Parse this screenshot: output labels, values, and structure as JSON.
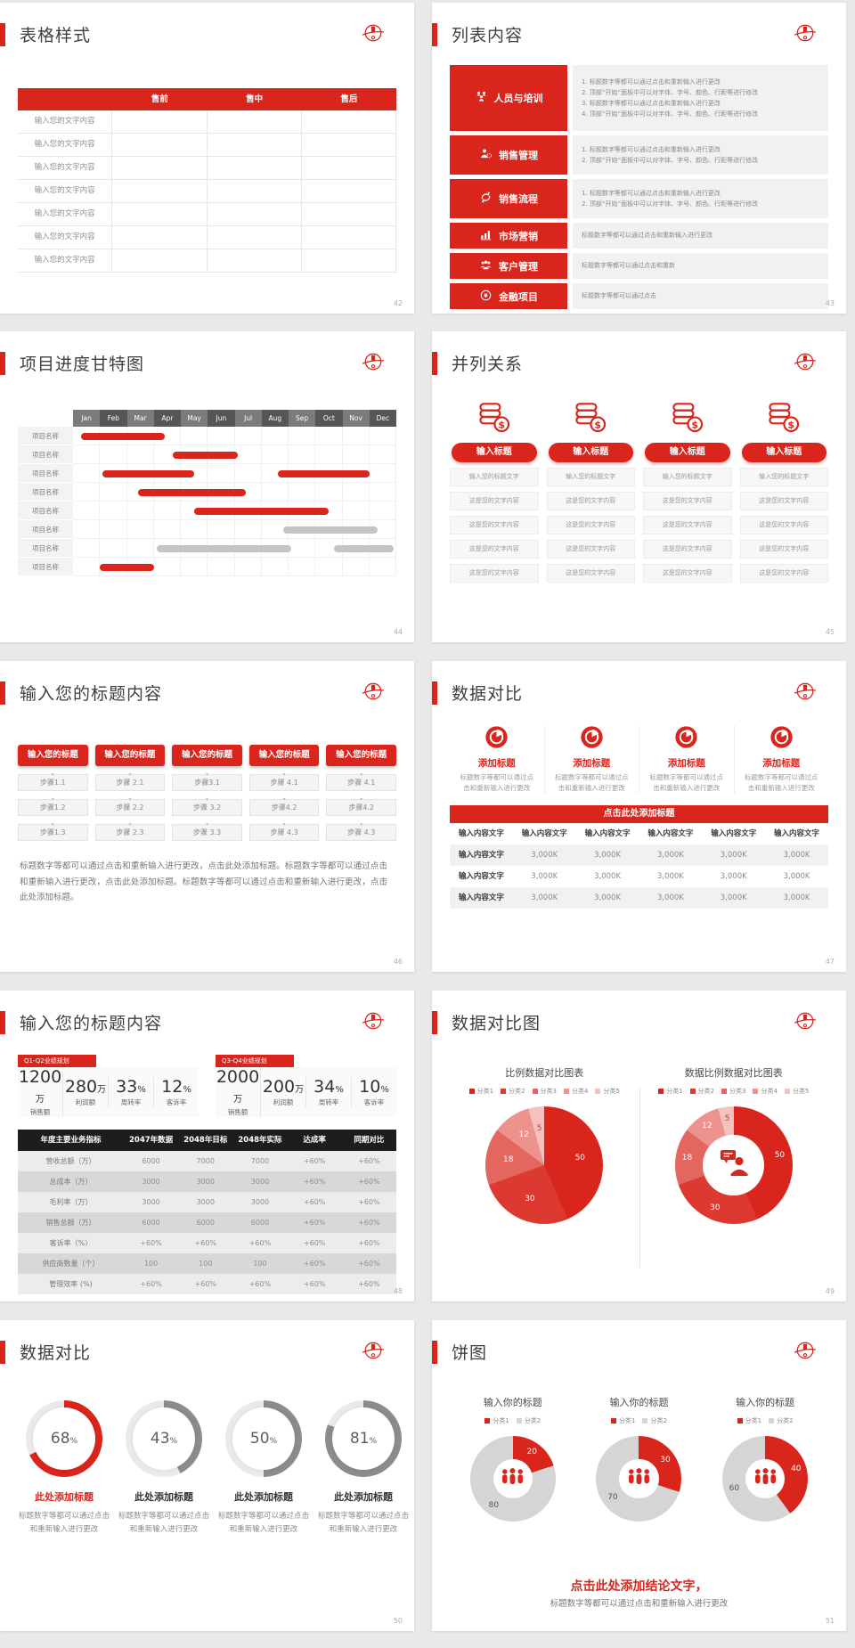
{
  "page": {
    "background": "#e9e9e9",
    "card_background": "#ffffff"
  },
  "colors": {
    "accent": "#da251c",
    "title_text": "#3f3f3f",
    "body_gray": "#8a8a8a",
    "gantt_month_a": "#7b7b7b",
    "gantt_month_b": "#565656",
    "gantt_bar_red": "#da251c",
    "gantt_bar_gray": "#c4c4c4",
    "table_header_black": "#1d1d1d",
    "row_light": "#ececec",
    "row_dark": "#d8d8d8",
    "ring_base": "#eaeaea",
    "ring_gray": "#8c8c8c",
    "pie_shades": [
      "#da251c",
      "#dc3a30",
      "#e4675f",
      "#ec938d",
      "#f4c1bd"
    ],
    "duo_gray": "#d5d5d5"
  },
  "slides": {
    "table_style": {
      "num": "42",
      "title": "表格样式",
      "table": {
        "columns": [
          "售前",
          "售中",
          "售后"
        ],
        "row_label": "输入您的文字内容",
        "row_count": 7
      }
    },
    "list_content": {
      "num": "43",
      "title": "列表内容",
      "blocks": [
        {
          "label": "人员与培训",
          "icon": "people-training-icon",
          "numbered": true,
          "items": [
            "标题数字等都可以通过点击和重新输入进行更改",
            "顶部“开始”面板中可以对字体、字号、颜色、行距等进行修改",
            "标题数字等都可以通过点击和重新输入进行更改",
            "顶部“开始”面板中可以对字体、字号、颜色、行距等进行修改"
          ]
        },
        {
          "label": "销售管理",
          "icon": "sales-management-icon",
          "numbered": true,
          "items": [
            "标题数字等都可以通过点击和重新输入进行更改",
            "顶部“开始”面板中可以对字体、字号、颜色、行距等进行修改"
          ]
        },
        {
          "label": "销售流程",
          "icon": "sales-process-icon",
          "numbered": true,
          "items": [
            "标题数字等都可以通过点击和重新输入进行更改",
            "顶部“开始”面板中可以对字体、字号、颜色、行距等进行修改"
          ]
        },
        {
          "label": "市场营销",
          "icon": "marketing-icon",
          "numbered": false,
          "items": [
            "标题数字等都可以通过点击和重新输入进行更改"
          ]
        },
        {
          "label": "客户管理",
          "icon": "customer-management-icon",
          "numbered": false,
          "items": [
            "标题数字等都可以通过点击和重新"
          ]
        },
        {
          "label": "金融项目",
          "icon": "finance-icon",
          "numbered": false,
          "items": [
            "标题数字等都可以通过点击"
          ]
        }
      ]
    },
    "gantt": {
      "num": "44",
      "title": "项目进度甘特图"
    },
    "parallel": {
      "num": "45",
      "title": "并列关系",
      "column_count": 4,
      "icon": "coins-dollar-icon",
      "button_label": "输入标题",
      "box_rows": [
        "输入您的标题文字",
        "这是您的文字内容",
        "这是您的文字内容",
        "这是您的文字内容",
        "这是您的文字内容"
      ]
    },
    "steps": {
      "num": "46",
      "title": "输入您的标题内容",
      "button_label": "输入您的标题",
      "step_cols": [
        [
          "步骤1.1",
          "步骤1.2",
          "步骤1.3"
        ],
        [
          "步骤 2.1",
          "步骤 2.2",
          "步骤 2.3"
        ],
        [
          "步骤3.1",
          "步骤 3.2",
          "步骤 3.3"
        ],
        [
          "步骤 4.1",
          "步骤4.2",
          "步骤 4.3"
        ],
        [
          "步骤 4.1",
          "步骤4.2",
          "步骤 4.3"
        ]
      ],
      "paragraph": "标题数字等都可以通过点击和重新输入进行更改，点击此处添加标题。标题数字等都可以通过点击和重新输入进行更改，点击此处添加标题。标题数字等都可以通过点击和重新输入进行更改，点击此处添加标题。"
    },
    "data_compare": {
      "num": "47",
      "title": "数据对比",
      "column_count": 4,
      "col_icon": "pie-badge-icon",
      "col_title": "添加标题",
      "col_text": "标题数字等都可以通过点击和重新输入进行更改",
      "banner": "点击此处添加标题",
      "table": {
        "header": [
          "输入内容文字",
          "输入内容文字",
          "输入内容文字",
          "输入内容文字",
          "输入内容文字",
          "输入内容文字"
        ],
        "rows": [
          [
            "输入内容文字",
            "3,000K",
            "3,000K",
            "3,000K",
            "3,000K",
            "3,000K"
          ],
          [
            "输入内容文字",
            "3,000K",
            "3,000K",
            "3,000K",
            "3,000K",
            "3,000K"
          ],
          [
            "输入内容文字",
            "3,000K",
            "3,000K",
            "3,000K",
            "3,000K",
            "3,000K"
          ]
        ]
      }
    },
    "metrics": {
      "num": "48",
      "title": "输入您的标题内容",
      "ribbons": [
        "Q1-Q2业绩规划",
        "Q3-Q4业绩规划"
      ],
      "groups": [
        [
          {
            "value": "1200",
            "unit": "万",
            "label": "销售额"
          },
          {
            "value": "280",
            "unit": "万",
            "label": "利润额"
          },
          {
            "value": "33",
            "unit": "%",
            "label": "周转率"
          },
          {
            "value": "12",
            "unit": "%",
            "label": "客诉率"
          }
        ],
        [
          {
            "value": "2000",
            "unit": "万",
            "label": "销售额"
          },
          {
            "value": "200",
            "unit": "万",
            "label": "利润额"
          },
          {
            "value": "34",
            "unit": "%",
            "label": "周转率"
          },
          {
            "value": "10",
            "unit": "%",
            "label": "客诉率"
          }
        ]
      ],
      "table": {
        "header": [
          "年度主要业务指标",
          "2047年数据",
          "2048年目标",
          "2048年实际",
          "达成率",
          "同期对比"
        ],
        "rows": [
          [
            "营收总额（万）",
            "6000",
            "7000",
            "7000",
            "+60%",
            "+60%"
          ],
          [
            "总成本（万）",
            "3000",
            "3000",
            "3000",
            "+60%",
            "+60%"
          ],
          [
            "毛利率（万）",
            "3000",
            "3000",
            "3000",
            "+60%",
            "+60%"
          ],
          [
            "销售总额（万）",
            "6000",
            "6000",
            "6000",
            "+60%",
            "+60%"
          ],
          [
            "客诉率（%）",
            "+60%",
            "+60%",
            "+60%",
            "+60%",
            "+60%"
          ],
          [
            "供应商数量（个）",
            "100",
            "100",
            "100",
            "+60%",
            "+60%"
          ],
          [
            "管理效率 (%)",
            "+60%",
            "+60%",
            "+60%",
            "+60%",
            "+60%"
          ]
        ]
      }
    },
    "compare_charts": {
      "num": "49",
      "title": "数据对比图"
    },
    "donut_percents": {
      "num": "50",
      "title": "数据对比",
      "item_title": "此处添加标题",
      "item_text": "标题数字等都可以通过点击和重新输入进行更改"
    },
    "pie_charts": {
      "num": "51",
      "title": "饼图",
      "conclusion": "点击此处添加结论文字，",
      "conclusion_sub": "标题数字等都可以通过点击和重新输入进行更改"
    }
  },
  "chart_data": [
    {
      "id": "gantt",
      "type": "bar",
      "subtype": "gantt",
      "title": "项目进度甘特图",
      "x_categories": [
        "Jan",
        "Feb",
        "Mar",
        "Apr",
        "May",
        "Jun",
        "Jul",
        "Aug",
        "Sep",
        "Oct",
        "Nov",
        "Dec"
      ],
      "row_label": "项目名称",
      "row_count": 8,
      "bars": [
        [
          {
            "start": 0.3,
            "end": 3.4,
            "color": "red"
          }
        ],
        [
          {
            "start": 3.7,
            "end": 6.1,
            "color": "red"
          }
        ],
        [
          {
            "start": 1.1,
            "end": 4.5,
            "color": "red"
          },
          {
            "start": 7.6,
            "end": 11.0,
            "color": "red"
          }
        ],
        [
          {
            "start": 2.4,
            "end": 6.4,
            "color": "red"
          }
        ],
        [
          {
            "start": 4.5,
            "end": 9.5,
            "color": "red"
          }
        ],
        [
          {
            "start": 7.8,
            "end": 11.3,
            "color": "gray"
          }
        ],
        [
          {
            "start": 3.1,
            "end": 8.1,
            "color": "gray"
          },
          {
            "start": 9.7,
            "end": 11.9,
            "color": "gray"
          }
        ],
        [
          {
            "start": 1.0,
            "end": 3.0,
            "color": "red"
          }
        ]
      ]
    },
    {
      "id": "pie_compare",
      "type": "pie",
      "title": "比例数据对比图表",
      "categories": [
        "分类1",
        "分类2",
        "分类3",
        "分类4",
        "分类5"
      ],
      "values": [
        50,
        30,
        18,
        12,
        5
      ],
      "legend_position": "top"
    },
    {
      "id": "donut_compare",
      "type": "pie",
      "subtype": "donut",
      "title": "数据比例数据对比图表",
      "categories": [
        "分类1",
        "分类2",
        "分类3",
        "分类4",
        "分类5"
      ],
      "values": [
        50,
        30,
        18,
        12,
        5
      ],
      "center_icon": "person-chat-icon",
      "legend_position": "top"
    },
    {
      "id": "gauges",
      "type": "pie",
      "subtype": "gauge-rings",
      "values": [
        68,
        43,
        50,
        81
      ],
      "unit": "%",
      "accent_index": 0
    },
    {
      "id": "duo_donuts",
      "type": "pie",
      "subtype": "donut",
      "titles": [
        "输入你的标题",
        "输入你的标题",
        "输入你的标题"
      ],
      "categories": [
        "分类1",
        "分类2"
      ],
      "series": [
        [
          20,
          80
        ],
        [
          30,
          70
        ],
        [
          40,
          60
        ]
      ],
      "center_icon": "people-group-icon"
    }
  ]
}
